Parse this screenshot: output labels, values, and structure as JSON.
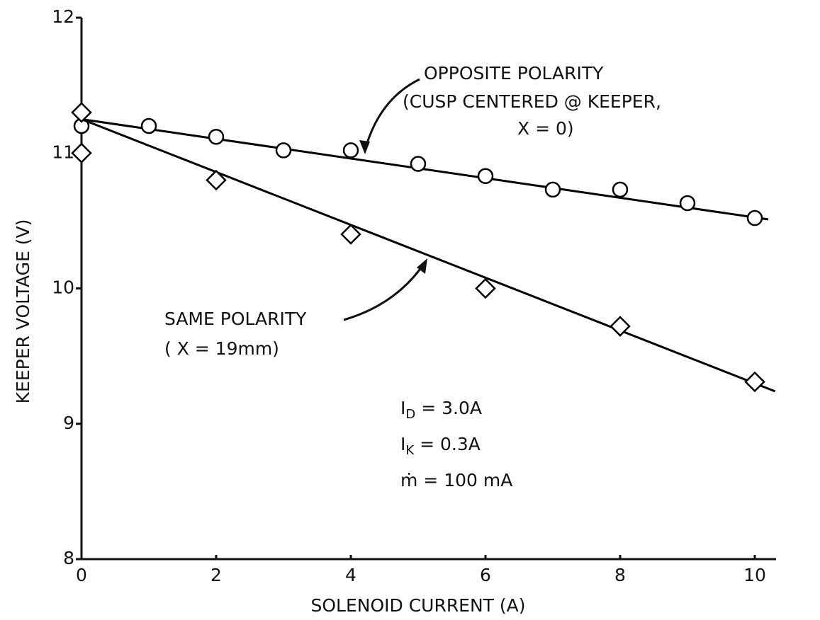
{
  "chart_data": {
    "type": "scatter",
    "xlabel": "SOLENOID CURRENT (A)",
    "ylabel": "KEEPER VOLTAGE (V)",
    "xlim": [
      0,
      10.5
    ],
    "ylim": [
      8,
      12
    ],
    "xticks": [
      0,
      2,
      4,
      6,
      8,
      10
    ],
    "yticks": [
      8,
      9,
      10,
      11,
      12
    ],
    "color": "#000000",
    "series": [
      {
        "name": [
          "OPPOSITE POLARITY",
          "(CUSP CENTERED  @ KEEPER,",
          "X = 0)"
        ],
        "marker": "circle",
        "x": [
          0,
          1,
          2,
          3,
          4,
          5,
          6,
          7,
          8,
          9,
          10
        ],
        "values": [
          11.2,
          11.2,
          11.12,
          11.02,
          11.02,
          10.92,
          10.83,
          10.73,
          10.73,
          10.63,
          10.52
        ],
        "fit": {
          "x": [
            0,
            10.2
          ],
          "values": [
            11.25,
            10.51
          ]
        }
      },
      {
        "name": [
          "SAME POLARITY",
          "( X = 19mm)"
        ],
        "marker": "diamond",
        "x": [
          0,
          0,
          2,
          4,
          6,
          8,
          10
        ],
        "values": [
          11.3,
          11.0,
          10.8,
          10.4,
          10.0,
          9.72,
          9.31
        ],
        "fit": {
          "x": [
            0,
            10.3
          ],
          "values": [
            11.25,
            9.24
          ]
        }
      }
    ],
    "annotations": [
      {
        "main": "I",
        "sub": "D",
        "rest": " = 3.0A"
      },
      {
        "main": "I",
        "sub": "K",
        "rest": " = 0.3A"
      },
      {
        "main": "ṁ",
        "sub": "",
        "rest": "  = 100 mA"
      }
    ]
  }
}
